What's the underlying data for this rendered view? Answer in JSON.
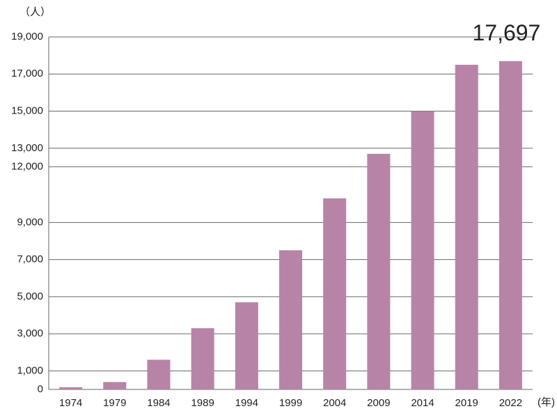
{
  "chart_data": {
    "type": "bar",
    "y_unit_label": "（人）",
    "x_unit_label": "(年)",
    "categories": [
      "1974",
      "1979",
      "1984",
      "1989",
      "1994",
      "1999",
      "2004",
      "2009",
      "2014",
      "2019",
      "2022"
    ],
    "values": [
      120,
      400,
      1600,
      3300,
      4700,
      7500,
      10300,
      12700,
      15000,
      17500,
      17697
    ],
    "value_labels": [
      null,
      null,
      null,
      null,
      null,
      null,
      null,
      null,
      null,
      null,
      "17,697"
    ],
    "color": "#b784a7",
    "ylim": [
      0,
      19000
    ],
    "yticks": [
      0,
      {
        "value": 1000,
        "label": "1,000"
      },
      {
        "value": 3000,
        "label": "3,000"
      },
      {
        "value": 5000,
        "label": "5,000"
      },
      {
        "value": 7000,
        "label": "7,000"
      },
      {
        "value": 9000,
        "label": "9,000"
      },
      {
        "value": 12000,
        "label": "12,000"
      },
      {
        "value": 13000,
        "label": "13,000"
      },
      {
        "value": 15000,
        "label": "15,000"
      },
      {
        "value": 17000,
        "label": "17,000"
      },
      {
        "value": 19000,
        "label": "19,000"
      }
    ],
    "grid": true
  }
}
